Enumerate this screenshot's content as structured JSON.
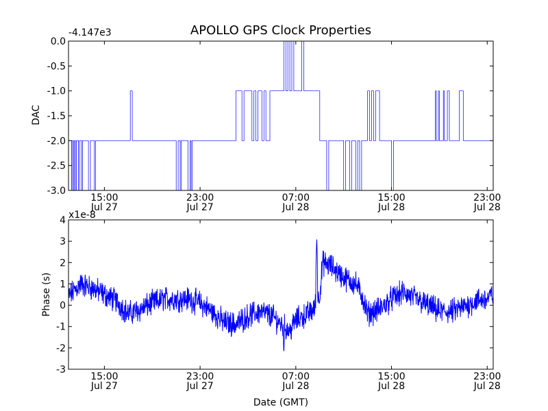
{
  "colors": {
    "line": "#0000ff",
    "axes": "#000000",
    "background": "#ffffff"
  },
  "title": "APOLLO GPS Clock Properties",
  "chart_data": [
    {
      "type": "line",
      "ylabel": "DAC",
      "offset_label": "-4.147e3",
      "ylim": [
        -3.0,
        0.0
      ],
      "xlim": [
        "2010-07-27 12:00",
        "2010-07-28 23:30"
      ],
      "yticks": [
        "0.0",
        "-0.5",
        "-1.0",
        "-1.5",
        "-2.0",
        "-2.5",
        "-3.0"
      ],
      "xticks": [
        {
          "time": "15:00",
          "date": "Jul 27"
        },
        {
          "time": "23:00",
          "date": "Jul 27"
        },
        {
          "time": "07:00",
          "date": "Jul 28"
        },
        {
          "time": "15:00",
          "date": "Jul 28"
        },
        {
          "time": "23:00",
          "date": "Jul 28"
        }
      ],
      "steps": [
        [
          "2010-07-27 12:00",
          -2
        ],
        [
          "2010-07-27 12:15",
          -3
        ],
        [
          "2010-07-27 12:20",
          -2
        ],
        [
          "2010-07-27 12:25",
          -3
        ],
        [
          "2010-07-27 12:30",
          -2
        ],
        [
          "2010-07-27 12:35",
          -3
        ],
        [
          "2010-07-27 12:40",
          -2
        ],
        [
          "2010-07-27 12:50",
          -3
        ],
        [
          "2010-07-27 12:55",
          -2
        ],
        [
          "2010-07-27 13:05",
          -3
        ],
        [
          "2010-07-27 13:10",
          -2
        ],
        [
          "2010-07-27 13:40",
          -3
        ],
        [
          "2010-07-27 13:50",
          -2
        ],
        [
          "2010-07-27 14:10",
          -3
        ],
        [
          "2010-07-27 14:15",
          -2
        ],
        [
          "2010-07-27 17:10",
          -1
        ],
        [
          "2010-07-27 17:20",
          -2
        ],
        [
          "2010-07-27 21:00",
          -3
        ],
        [
          "2010-07-27 21:10",
          -2
        ],
        [
          "2010-07-27 21:20",
          -3
        ],
        [
          "2010-07-27 21:25",
          -2
        ],
        [
          "2010-07-27 22:00",
          -3
        ],
        [
          "2010-07-27 22:10",
          -2
        ],
        [
          "2010-07-27 22:15",
          -3
        ],
        [
          "2010-07-27 22:20",
          -2
        ],
        [
          "2010-07-28 02:00",
          -1
        ],
        [
          "2010-07-28 02:30",
          -2
        ],
        [
          "2010-07-28 02:40",
          -1
        ],
        [
          "2010-07-28 03:20",
          -2
        ],
        [
          "2010-07-28 03:30",
          -1
        ],
        [
          "2010-07-28 03:40",
          -2
        ],
        [
          "2010-07-28 03:50",
          -1
        ],
        [
          "2010-07-28 04:10",
          -2
        ],
        [
          "2010-07-28 04:20",
          -1
        ],
        [
          "2010-07-28 04:30",
          -2
        ],
        [
          "2010-07-28 04:50",
          -1
        ],
        [
          "2010-07-28 06:00",
          0
        ],
        [
          "2010-07-28 06:10",
          -1
        ],
        [
          "2010-07-28 06:20",
          0
        ],
        [
          "2010-07-28 06:30",
          -1
        ],
        [
          "2010-07-28 06:40",
          0
        ],
        [
          "2010-07-28 06:50",
          -1
        ],
        [
          "2010-07-28 07:30",
          0
        ],
        [
          "2010-07-28 07:40",
          -1
        ],
        [
          "2010-07-28 09:00",
          -2
        ],
        [
          "2010-07-28 09:35",
          -3
        ],
        [
          "2010-07-28 09:45",
          -2
        ],
        [
          "2010-07-28 11:00",
          -3
        ],
        [
          "2010-07-28 11:10",
          -2
        ],
        [
          "2010-07-28 11:30",
          -3
        ],
        [
          "2010-07-28 11:40",
          -2
        ],
        [
          "2010-07-28 12:00",
          -3
        ],
        [
          "2010-07-28 12:10",
          -2
        ],
        [
          "2010-07-28 12:20",
          -3
        ],
        [
          "2010-07-28 12:30",
          -2
        ],
        [
          "2010-07-28 13:00",
          -1
        ],
        [
          "2010-07-28 13:10",
          -2
        ],
        [
          "2010-07-28 13:20",
          -1
        ],
        [
          "2010-07-28 13:30",
          -2
        ],
        [
          "2010-07-28 13:40",
          -1
        ],
        [
          "2010-07-28 14:00",
          -2
        ],
        [
          "2010-07-28 15:00",
          -3
        ],
        [
          "2010-07-28 15:10",
          -2
        ],
        [
          "2010-07-28 18:40",
          -1
        ],
        [
          "2010-07-28 18:45",
          -2
        ],
        [
          "2010-07-28 18:55",
          -1
        ],
        [
          "2010-07-28 19:00",
          -2
        ],
        [
          "2010-07-28 19:20",
          -1
        ],
        [
          "2010-07-28 19:25",
          -2
        ],
        [
          "2010-07-28 19:40",
          -1
        ],
        [
          "2010-07-28 19:50",
          -2
        ],
        [
          "2010-07-28 20:40",
          -1
        ],
        [
          "2010-07-28 21:00",
          -2
        ],
        [
          "2010-07-28 23:30",
          -2
        ]
      ]
    },
    {
      "type": "line",
      "ylabel": "Phase (s)",
      "xlabel": "Date (GMT)",
      "offset_label": "x1e-8",
      "ylim": [
        -3,
        4
      ],
      "xlim": [
        "2010-07-27 12:00",
        "2010-07-28 23:30"
      ],
      "yticks": [
        "4",
        "3",
        "2",
        "1",
        "0",
        "-1",
        "-2",
        "-3"
      ],
      "xticks": [
        {
          "time": "15:00",
          "date": "Jul 27"
        },
        {
          "time": "23:00",
          "date": "Jul 27"
        },
        {
          "time": "07:00",
          "date": "Jul 28"
        },
        {
          "time": "15:00",
          "date": "Jul 28"
        },
        {
          "time": "23:00",
          "date": "Jul 28"
        }
      ],
      "trend": [
        [
          "2010-07-27 12:00",
          0.4
        ],
        [
          "2010-07-27 13:00",
          1.0
        ],
        [
          "2010-07-27 14:00",
          0.8
        ],
        [
          "2010-07-27 15:00",
          0.5
        ],
        [
          "2010-07-27 16:00",
          0.2
        ],
        [
          "2010-07-27 17:00",
          -0.4
        ],
        [
          "2010-07-27 18:00",
          -0.2
        ],
        [
          "2010-07-27 19:00",
          0.1
        ],
        [
          "2010-07-27 20:00",
          0.3
        ],
        [
          "2010-07-27 21:00",
          0.3
        ],
        [
          "2010-07-27 22:00",
          0.3
        ],
        [
          "2010-07-27 23:00",
          0.1
        ],
        [
          "2010-07-28 00:00",
          -0.3
        ],
        [
          "2010-07-28 01:00",
          -0.8
        ],
        [
          "2010-07-28 02:00",
          -0.9
        ],
        [
          "2010-07-28 03:00",
          -0.5
        ],
        [
          "2010-07-28 04:00",
          -0.3
        ],
        [
          "2010-07-28 05:00",
          -0.5
        ],
        [
          "2010-07-28 06:00",
          -1.0
        ],
        [
          "2010-07-28 06:30",
          -1.2
        ],
        [
          "2010-07-28 07:00",
          -0.7
        ],
        [
          "2010-07-28 08:00",
          -0.4
        ],
        [
          "2010-07-28 08:30",
          -0.2
        ],
        [
          "2010-07-28 09:00",
          0.5
        ],
        [
          "2010-07-28 09:15",
          2.0
        ],
        [
          "2010-07-28 10:00",
          1.8
        ],
        [
          "2010-07-28 11:00",
          1.3
        ],
        [
          "2010-07-28 12:00",
          1.0
        ],
        [
          "2010-07-28 12:30",
          0.5
        ],
        [
          "2010-07-28 13:00",
          -0.4
        ],
        [
          "2010-07-28 14:00",
          -0.2
        ],
        [
          "2010-07-28 15:00",
          0.3
        ],
        [
          "2010-07-28 16:00",
          0.6
        ],
        [
          "2010-07-28 17:00",
          0.3
        ],
        [
          "2010-07-28 18:00",
          0.0
        ],
        [
          "2010-07-28 19:00",
          -0.3
        ],
        [
          "2010-07-28 20:00",
          -0.3
        ],
        [
          "2010-07-28 21:00",
          -0.1
        ],
        [
          "2010-07-28 22:00",
          0.2
        ],
        [
          "2010-07-28 23:00",
          0.3
        ],
        [
          "2010-07-28 23:30",
          0.5
        ]
      ],
      "peak": [
        "2010-07-28 08:45",
        3.2
      ],
      "min": [
        "2010-07-28 06:00",
        -2.4
      ]
    }
  ]
}
